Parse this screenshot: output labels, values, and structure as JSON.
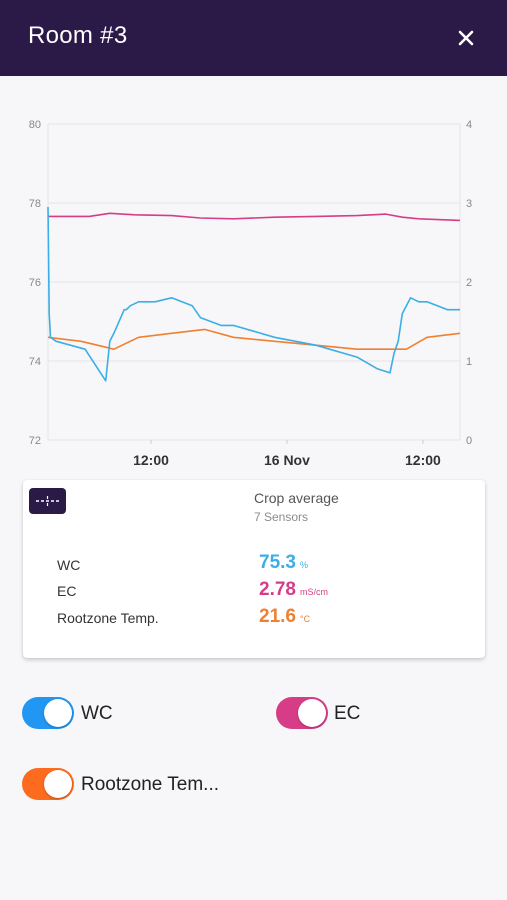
{
  "header": {
    "title": "Room #3"
  },
  "colors": {
    "wc": "#3aaee7",
    "ec": "#d63d86",
    "temp": "#f08030",
    "header": "#2b1a47"
  },
  "chart_data": {
    "type": "line",
    "left_axis": {
      "ticks": [
        "80",
        "78",
        "76",
        "74",
        "72"
      ],
      "range": [
        72,
        80
      ]
    },
    "right_axis": {
      "ticks": [
        "4",
        "3",
        "2",
        "1",
        "0"
      ],
      "range": [
        0,
        4
      ]
    },
    "x_ticks": [
      "12:00",
      "16 Nov",
      "12:00"
    ],
    "grid": true,
    "series": [
      {
        "name": "EC",
        "axis": "right",
        "color": "#d63d86",
        "x": [
          0,
          0.1,
          0.15,
          0.21,
          0.3,
          0.37,
          0.45,
          0.55,
          0.65,
          0.75,
          0.82,
          0.86,
          0.9,
          1.0
        ],
        "y": [
          2.83,
          2.83,
          2.87,
          2.85,
          2.84,
          2.81,
          2.8,
          2.82,
          2.83,
          2.84,
          2.86,
          2.82,
          2.8,
          2.78
        ]
      },
      {
        "name": "Rootzone Temp.",
        "axis": "left",
        "color": "#f08030",
        "x": [
          0,
          0.08,
          0.12,
          0.16,
          0.22,
          0.3,
          0.38,
          0.45,
          0.55,
          0.65,
          0.75,
          0.83,
          0.87,
          0.92,
          1.0
        ],
        "y": [
          74.6,
          74.5,
          74.4,
          74.3,
          74.6,
          74.7,
          74.8,
          74.6,
          74.5,
          74.4,
          74.3,
          74.3,
          74.3,
          74.6,
          74.7
        ]
      },
      {
        "name": "WC",
        "axis": "left",
        "color": "#3aaee7",
        "x": [
          0,
          0.003,
          0.006,
          0.02,
          0.09,
          0.14,
          0.15,
          0.16,
          0.185,
          0.19,
          0.2,
          0.22,
          0.26,
          0.3,
          0.35,
          0.37,
          0.42,
          0.45,
          0.55,
          0.65,
          0.75,
          0.8,
          0.83,
          0.84,
          0.85,
          0.86,
          0.87,
          0.88,
          0.9,
          0.92,
          0.97,
          1.0
        ],
        "y": [
          77.9,
          75.2,
          74.6,
          74.5,
          74.3,
          73.5,
          74.5,
          74.7,
          75.3,
          75.3,
          75.4,
          75.5,
          75.5,
          75.6,
          75.4,
          75.1,
          74.9,
          74.9,
          74.6,
          74.4,
          74.1,
          73.8,
          73.7,
          74.2,
          74.5,
          75.2,
          75.4,
          75.6,
          75.5,
          75.5,
          75.3,
          75.3
        ]
      }
    ]
  },
  "card": {
    "title": "Crop average",
    "subtitle": "7 Sensors",
    "icon": "average-line-icon",
    "metrics": [
      {
        "label": "WC",
        "value": "75.3",
        "unit": "%",
        "color": "#3aaee7"
      },
      {
        "label": "EC",
        "value": "2.78",
        "unit": "mS/cm",
        "color": "#d63d86"
      },
      {
        "label": "Rootzone Temp.",
        "value": "21.6",
        "unit": "°C",
        "color": "#f08030"
      }
    ]
  },
  "toggles": [
    {
      "label": "WC",
      "on": true,
      "color": "#2196f3"
    },
    {
      "label": "EC",
      "on": true,
      "color": "#d63d86"
    },
    {
      "label": "Rootzone Tem...",
      "on": true,
      "color": "#fc6b1e"
    }
  ]
}
